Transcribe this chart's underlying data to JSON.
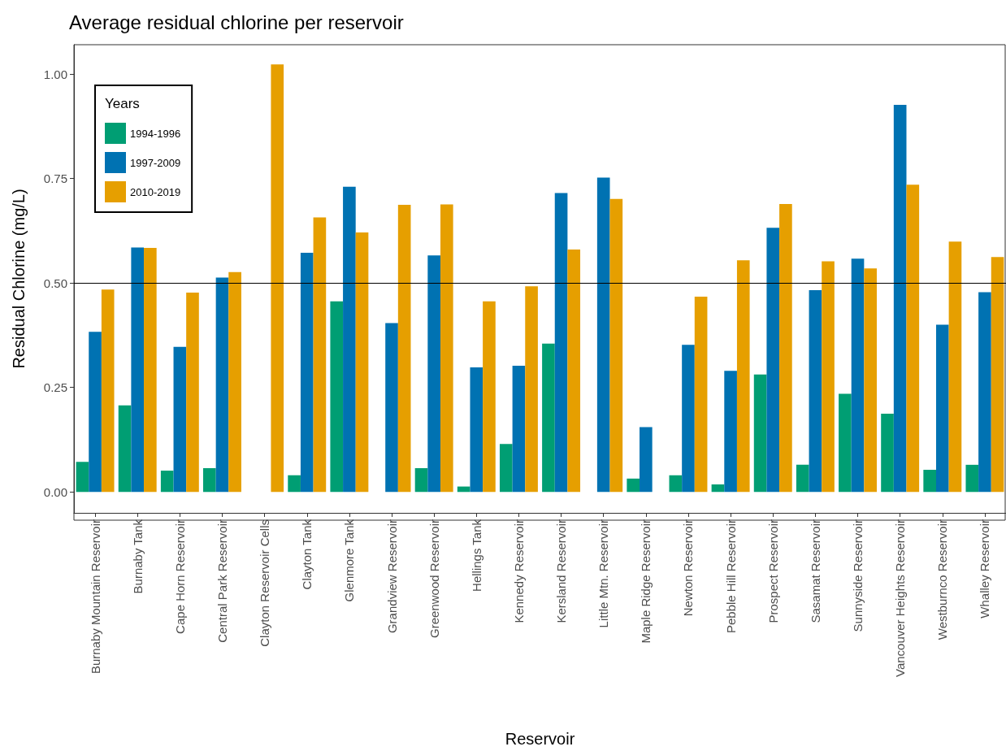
{
  "chart_data": {
    "type": "bar",
    "title": "Average residual chlorine per reservoir",
    "xlabel": "Reservoir",
    "ylabel": "Residual Chlorine (mg/L)",
    "legend_title": "Years",
    "categories": [
      "Burnaby Mountain Reservoir",
      "Burnaby Tank",
      "Cape Horn Reservoir",
      "Central Park Reservoir",
      "Clayton Reservoir Cells",
      "Clayton Tank",
      "Glenmore Tank",
      "Grandview Reservoir",
      "Greenwood Reservoir",
      "Hellings Tank",
      "Kennedy Reservoir",
      "Kersland Reservoir",
      "Little Mtn. Reservoir",
      "Maple Ridge Reservoir",
      "Newton Reservoir",
      "Pebble Hill Reservoir",
      "Prospect Reservoir",
      "Sasamat Reservoir",
      "Sunnyside Reservoir",
      "Vancouver Heights Reservoir",
      "Westburnco Reservoir",
      "Whalley Reservoir"
    ],
    "series": [
      {
        "name": "1994-1996",
        "color": "#009e73",
        "values": [
          0.072,
          0.207,
          0.051,
          0.057,
          null,
          0.04,
          0.456,
          null,
          0.057,
          0.013,
          0.115,
          0.355,
          null,
          0.032,
          0.04,
          0.018,
          0.281,
          0.065,
          0.235,
          0.187,
          0.053,
          0.065
        ]
      },
      {
        "name": "1997-2009",
        "color": "#0072b2",
        "values": [
          0.383,
          0.585,
          0.347,
          0.513,
          null,
          0.572,
          0.73,
          0.404,
          0.566,
          0.298,
          0.302,
          0.715,
          0.752,
          0.155,
          0.352,
          0.29,
          0.632,
          0.483,
          0.558,
          0.926,
          0.4,
          0.478
        ]
      },
      {
        "name": "2010-2019",
        "color": "#e69f00",
        "values": [
          0.484,
          0.584,
          0.477,
          0.526,
          1.023,
          0.657,
          0.621,
          0.687,
          0.688,
          0.456,
          0.492,
          0.58,
          0.701,
          null,
          0.467,
          0.554,
          0.689,
          0.552,
          0.535,
          0.735,
          0.599,
          0.562
        ]
      }
    ],
    "ylim": [
      -0.05,
      1.07
    ],
    "yticks": [
      {
        "value": 0,
        "label": "0.00"
      },
      {
        "value": 0.25,
        "label": "0.25"
      },
      {
        "value": 0.5,
        "label": "0.50"
      },
      {
        "value": 0.75,
        "label": "0.75"
      },
      {
        "value": 1,
        "label": "1.00"
      }
    ],
    "ref_lines": [
      {
        "axis": "y",
        "value": 0.5,
        "color": "#000000"
      }
    ],
    "grid": false,
    "legend": "top left"
  }
}
